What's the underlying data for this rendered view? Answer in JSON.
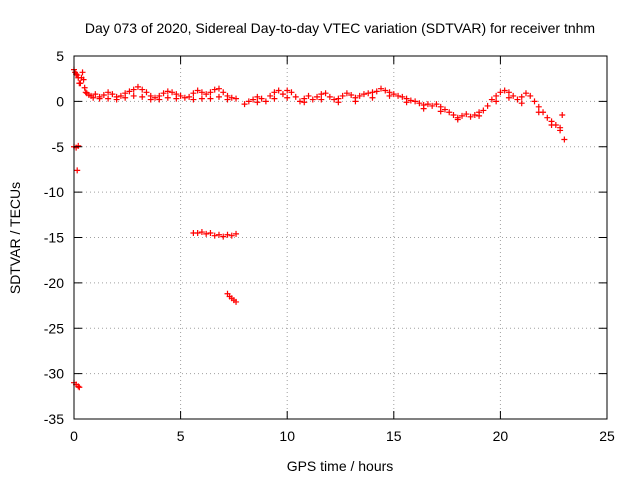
{
  "chart_data": {
    "type": "scatter",
    "title": "Day 073 of 2020, Sidereal Day-to-day VTEC variation (SDTVAR) for receiver tnhm",
    "xlabel": "GPS time / hours",
    "ylabel": "SDTVAR / TECUs",
    "xlim": [
      0,
      25
    ],
    "ylim": [
      -35,
      5
    ],
    "xticks": [
      0,
      5,
      10,
      15,
      20,
      25
    ],
    "yticks": [
      5,
      0,
      -5,
      -10,
      -15,
      -20,
      -25,
      -30,
      -35
    ],
    "grid": true,
    "marker": "+",
    "color": "#ff0000",
    "series": [
      {
        "name": "SDTVAR",
        "points": [
          [
            0.0,
            3.5
          ],
          [
            0.05,
            3.2
          ],
          [
            0.1,
            3.0
          ],
          [
            0.15,
            2.9
          ],
          [
            0.2,
            2.6
          ],
          [
            0.25,
            2.0
          ],
          [
            0.3,
            2.0
          ],
          [
            0.35,
            2.6
          ],
          [
            0.4,
            3.2
          ],
          [
            0.45,
            2.4
          ],
          [
            0.5,
            1.5
          ],
          [
            0.55,
            1.0
          ],
          [
            0.6,
            0.9
          ],
          [
            0.7,
            0.7
          ],
          [
            0.8,
            0.6
          ],
          [
            0.9,
            0.4
          ],
          [
            1.0,
            0.8
          ],
          [
            1.2,
            0.5
          ],
          [
            1.4,
            0.7
          ],
          [
            1.6,
            1.0
          ],
          [
            1.8,
            0.8
          ],
          [
            2.0,
            0.5
          ],
          [
            2.2,
            0.6
          ],
          [
            2.4,
            0.9
          ],
          [
            2.6,
            1.1
          ],
          [
            2.8,
            1.3
          ],
          [
            3.0,
            1.6
          ],
          [
            3.2,
            1.3
          ],
          [
            3.4,
            1.0
          ],
          [
            3.6,
            0.6
          ],
          [
            3.8,
            0.4
          ],
          [
            4.0,
            0.6
          ],
          [
            4.2,
            0.9
          ],
          [
            4.4,
            1.1
          ],
          [
            4.6,
            1.0
          ],
          [
            4.8,
            0.8
          ],
          [
            5.0,
            0.6
          ],
          [
            5.2,
            0.4
          ],
          [
            5.4,
            0.5
          ],
          [
            5.6,
            0.9
          ],
          [
            5.8,
            1.2
          ],
          [
            6.0,
            1.0
          ],
          [
            6.2,
            0.8
          ],
          [
            6.4,
            1.0
          ],
          [
            6.6,
            1.3
          ],
          [
            6.8,
            1.4
          ],
          [
            7.0,
            1.0
          ],
          [
            7.2,
            0.6
          ],
          [
            7.4,
            0.4
          ],
          [
            7.6,
            0.3
          ],
          [
            1.2,
            0.3
          ],
          [
            1.6,
            0.3
          ],
          [
            2.0,
            0.2
          ],
          [
            2.4,
            0.4
          ],
          [
            2.8,
            0.6
          ],
          [
            3.2,
            0.5
          ],
          [
            3.6,
            0.2
          ],
          [
            4.0,
            0.2
          ],
          [
            4.4,
            0.4
          ],
          [
            4.8,
            0.3
          ],
          [
            5.6,
            0.2
          ],
          [
            6.0,
            0.3
          ],
          [
            6.4,
            0.3
          ],
          [
            6.8,
            0.5
          ],
          [
            7.2,
            0.2
          ],
          [
            8.0,
            -0.3
          ],
          [
            8.2,
            0.0
          ],
          [
            8.4,
            0.2
          ],
          [
            8.6,
            0.5
          ],
          [
            8.8,
            0.3
          ],
          [
            9.0,
            0.0
          ],
          [
            9.2,
            0.6
          ],
          [
            9.4,
            1.0
          ],
          [
            9.6,
            1.2
          ],
          [
            9.8,
            0.8
          ],
          [
            10.0,
            1.2
          ],
          [
            10.2,
            1.0
          ],
          [
            10.4,
            0.5
          ],
          [
            10.6,
            0.0
          ],
          [
            10.8,
            0.3
          ],
          [
            11.0,
            0.6
          ],
          [
            11.2,
            0.2
          ],
          [
            11.4,
            0.5
          ],
          [
            11.6,
            0.8
          ],
          [
            11.8,
            0.9
          ],
          [
            12.0,
            0.5
          ],
          [
            12.2,
            0.2
          ],
          [
            12.4,
            0.3
          ],
          [
            12.6,
            0.6
          ],
          [
            12.8,
            0.9
          ],
          [
            13.0,
            0.7
          ],
          [
            13.2,
            0.4
          ],
          [
            13.4,
            0.6
          ],
          [
            13.6,
            0.8
          ],
          [
            13.8,
            0.9
          ],
          [
            14.0,
            1.0
          ],
          [
            14.2,
            1.1
          ],
          [
            14.4,
            1.4
          ],
          [
            14.6,
            1.2
          ],
          [
            14.8,
            1.0
          ],
          [
            15.0,
            0.8
          ],
          [
            15.2,
            0.6
          ],
          [
            15.4,
            0.5
          ],
          [
            15.6,
            0.3
          ],
          [
            15.8,
            0.1
          ],
          [
            16.0,
            0.0
          ],
          [
            16.2,
            -0.2
          ],
          [
            16.4,
            -0.4
          ],
          [
            16.6,
            -0.3
          ],
          [
            16.8,
            -0.5
          ],
          [
            17.0,
            -0.3
          ],
          [
            17.2,
            -0.6
          ],
          [
            17.4,
            -0.9
          ],
          [
            17.6,
            -1.2
          ],
          [
            17.8,
            -1.5
          ],
          [
            18.0,
            -1.8
          ],
          [
            18.2,
            -1.6
          ],
          [
            18.4,
            -1.4
          ],
          [
            18.6,
            -1.7
          ],
          [
            18.8,
            -1.5
          ],
          [
            19.0,
            -1.2
          ],
          [
            19.2,
            -1.0
          ],
          [
            19.4,
            -0.5
          ],
          [
            19.6,
            0.2
          ],
          [
            19.8,
            0.6
          ],
          [
            20.0,
            1.0
          ],
          [
            20.2,
            1.2
          ],
          [
            20.4,
            1.0
          ],
          [
            20.6,
            0.6
          ],
          [
            20.8,
            0.2
          ],
          [
            21.0,
            0.5
          ],
          [
            21.2,
            0.9
          ],
          [
            21.4,
            0.6
          ],
          [
            21.6,
            0.0
          ],
          [
            21.8,
            -0.6
          ],
          [
            22.0,
            -1.2
          ],
          [
            22.2,
            -1.8
          ],
          [
            22.4,
            -2.2
          ],
          [
            22.6,
            -2.6
          ],
          [
            22.8,
            -2.9
          ],
          [
            22.9,
            -1.5
          ],
          [
            23.0,
            -4.2
          ],
          [
            8.6,
            -0.1
          ],
          [
            9.4,
            0.3
          ],
          [
            10.0,
            0.4
          ],
          [
            10.8,
            -0.1
          ],
          [
            11.6,
            0.2
          ],
          [
            12.4,
            -0.1
          ],
          [
            13.2,
            0.0
          ],
          [
            14.0,
            0.4
          ],
          [
            14.8,
            0.6
          ],
          [
            15.6,
            -0.1
          ],
          [
            16.4,
            -0.8
          ],
          [
            17.2,
            -1.1
          ],
          [
            18.0,
            -2.0
          ],
          [
            19.0,
            -1.6
          ],
          [
            19.8,
            0.0
          ],
          [
            20.4,
            0.4
          ],
          [
            21.0,
            -0.2
          ],
          [
            21.8,
            -1.2
          ],
          [
            22.4,
            -2.6
          ],
          [
            22.8,
            -3.2
          ],
          [
            0.0,
            -5.0
          ],
          [
            0.1,
            -5.1
          ],
          [
            0.2,
            -4.9
          ],
          [
            0.15,
            -7.6
          ],
          [
            5.6,
            -14.5
          ],
          [
            5.8,
            -14.5
          ],
          [
            6.0,
            -14.4
          ],
          [
            6.2,
            -14.6
          ],
          [
            6.4,
            -14.5
          ],
          [
            6.6,
            -14.8
          ],
          [
            6.8,
            -14.7
          ],
          [
            7.0,
            -14.9
          ],
          [
            7.2,
            -14.7
          ],
          [
            7.4,
            -14.8
          ],
          [
            7.6,
            -14.6
          ],
          [
            7.2,
            -21.2
          ],
          [
            7.3,
            -21.5
          ],
          [
            7.4,
            -21.7
          ],
          [
            7.5,
            -21.9
          ],
          [
            7.6,
            -22.1
          ],
          [
            0.0,
            -31.0
          ],
          [
            0.1,
            -31.2
          ],
          [
            0.2,
            -31.4
          ],
          [
            0.25,
            -31.5
          ]
        ]
      }
    ]
  }
}
